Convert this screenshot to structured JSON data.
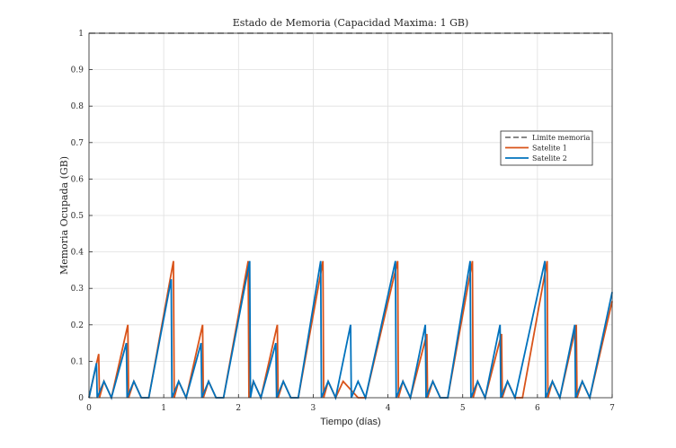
{
  "chart_data": {
    "type": "line",
    "title": "Estado de Memoria (Capacidad Maxima: 1 GB)",
    "xlabel": "Tiempo (días)",
    "ylabel": "Memoria Ocupada (GB)",
    "xlim": [
      0,
      7
    ],
    "ylim": [
      0,
      1
    ],
    "xticks": [
      "0",
      "1",
      "2",
      "3",
      "4",
      "5",
      "6",
      "7"
    ],
    "yticks": [
      "0",
      "0.1",
      "0.2",
      "0.3",
      "0.4",
      "0.5",
      "0.6",
      "0.7",
      "0.8",
      "0.9",
      "1"
    ],
    "grid": true,
    "legend_position": "right",
    "series": [
      {
        "name": "Limite memoria",
        "color": "#404040",
        "style": "dashed",
        "x": [
          0,
          7
        ],
        "y": [
          1,
          1
        ]
      },
      {
        "name": "Satelite 1",
        "color": "#d95319",
        "style": "solid",
        "x": [
          0,
          0.13,
          0.14,
          0.2,
          0.3,
          0.52,
          0.53,
          0.6,
          0.7,
          0.8,
          1.13,
          1.14,
          1.2,
          1.3,
          1.52,
          1.53,
          1.6,
          1.7,
          1.8,
          2.13,
          2.14,
          2.2,
          2.3,
          2.52,
          2.53,
          2.6,
          2.7,
          2.8,
          3.13,
          3.14,
          3.2,
          3.3,
          3.4,
          3.6,
          3.7,
          4.13,
          4.14,
          4.2,
          4.3,
          4.52,
          4.53,
          4.6,
          4.7,
          4.8,
          5.13,
          5.14,
          5.2,
          5.3,
          5.52,
          5.53,
          5.6,
          5.7,
          5.8,
          6.13,
          6.14,
          6.2,
          6.3,
          6.52,
          6.53,
          6.6,
          6.7,
          7
        ],
        "y": [
          0,
          0.12,
          0.0,
          0.045,
          0.0,
          0.2,
          0.0,
          0.045,
          0.0,
          0.0,
          0.375,
          0.0,
          0.045,
          0.0,
          0.2,
          0.0,
          0.045,
          0.0,
          0.0,
          0.375,
          0.0,
          0.045,
          0.0,
          0.2,
          0.0,
          0.045,
          0.0,
          0.0,
          0.375,
          0.0,
          0.045,
          0.0,
          0.045,
          0.0,
          0.0,
          0.375,
          0.0,
          0.045,
          0.0,
          0.175,
          0.0,
          0.045,
          0.0,
          0.0,
          0.375,
          0.0,
          0.045,
          0.0,
          0.175,
          0.0,
          0.045,
          0.0,
          0.0,
          0.375,
          0.0,
          0.045,
          0.0,
          0.2,
          0.0,
          0.045,
          0.0,
          0.265
        ]
      },
      {
        "name": "Satelite 2",
        "color": "#0072bd",
        "style": "solid",
        "x": [
          0,
          0.1,
          0.11,
          0.2,
          0.3,
          0.5,
          0.51,
          0.6,
          0.7,
          0.8,
          1.1,
          1.11,
          1.2,
          1.3,
          1.5,
          1.51,
          1.6,
          1.7,
          1.8,
          2.15,
          2.16,
          2.2,
          2.3,
          2.5,
          2.51,
          2.6,
          2.7,
          2.8,
          3.1,
          3.11,
          3.2,
          3.3,
          3.5,
          3.51,
          3.6,
          3.7,
          4.1,
          4.11,
          4.2,
          4.3,
          4.5,
          4.51,
          4.6,
          4.7,
          4.8,
          5.1,
          5.11,
          5.2,
          5.3,
          5.5,
          5.51,
          5.6,
          5.7,
          6.1,
          6.11,
          6.2,
          6.3,
          6.5,
          6.51,
          6.6,
          6.7,
          7
        ],
        "y": [
          0,
          0.095,
          0.0,
          0.045,
          0.0,
          0.15,
          0.0,
          0.045,
          0.0,
          0.0,
          0.325,
          0.0,
          0.045,
          0.0,
          0.15,
          0.0,
          0.045,
          0.0,
          0.0,
          0.375,
          0.0,
          0.045,
          0.0,
          0.15,
          0.0,
          0.045,
          0.0,
          0.0,
          0.375,
          0.0,
          0.045,
          0.0,
          0.2,
          0.0,
          0.045,
          0.0,
          0.375,
          0.0,
          0.045,
          0.0,
          0.2,
          0.0,
          0.045,
          0.0,
          0.0,
          0.375,
          0.0,
          0.045,
          0.0,
          0.2,
          0.0,
          0.045,
          0.0,
          0.375,
          0.0,
          0.045,
          0.0,
          0.2,
          0.0,
          0.045,
          0.0,
          0.29
        ]
      }
    ]
  }
}
